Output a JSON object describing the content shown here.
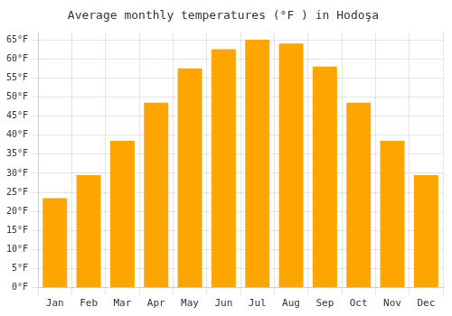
{
  "chart_data": {
    "type": "bar",
    "title": "Average monthly temperatures (°F ) in Hodoşa",
    "categories": [
      "Jan",
      "Feb",
      "Mar",
      "Apr",
      "May",
      "Jun",
      "Jul",
      "Aug",
      "Sep",
      "Oct",
      "Nov",
      "Dec"
    ],
    "values": [
      23.5,
      29.5,
      38.5,
      48.5,
      57.5,
      62.5,
      65.0,
      64.0,
      58.0,
      48.5,
      38.5,
      29.5
    ],
    "color": "#FFA500",
    "ylim": [
      0,
      67
    ],
    "yticks": [
      {
        "value": 0,
        "label": "0°F"
      },
      {
        "value": 5,
        "label": "5°F"
      },
      {
        "value": 10,
        "label": "10°F"
      },
      {
        "value": 15,
        "label": "15°F"
      },
      {
        "value": 20,
        "label": "20°F"
      },
      {
        "value": 25,
        "label": "25°F"
      },
      {
        "value": 30,
        "label": "30°F"
      },
      {
        "value": 35,
        "label": "35°F"
      },
      {
        "value": 40,
        "label": "40°F"
      },
      {
        "value": 45,
        "label": "45°F"
      },
      {
        "value": 50,
        "label": "50°F"
      },
      {
        "value": 55,
        "label": "55°F"
      },
      {
        "value": 60,
        "label": "60°F"
      },
      {
        "value": 65,
        "label": "65°F"
      }
    ],
    "grid": true
  }
}
